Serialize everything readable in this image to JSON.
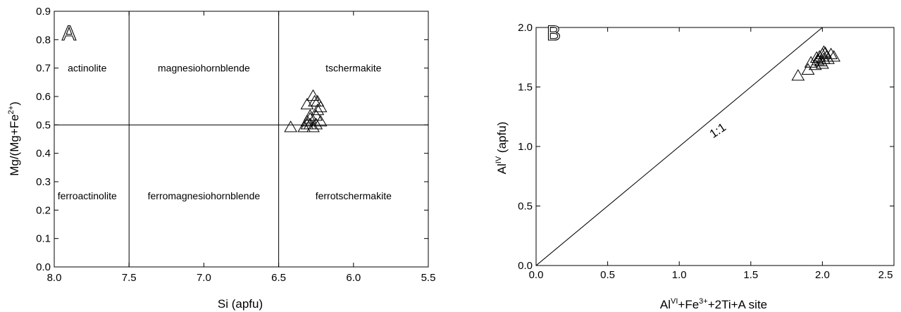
{
  "chart_data": [
    {
      "panel": "A",
      "type": "scatter",
      "xlabel": "Si (apfu)",
      "ylabel": "Mg/(Mg+Fe2+)",
      "xlim": [
        8.0,
        5.5
      ],
      "ylim": [
        0.0,
        0.9
      ],
      "x_reversed": true,
      "xticks": [
        "8.0",
        "7.5",
        "7.0",
        "6.5",
        "6.0",
        "5.5"
      ],
      "yticks": [
        "0.0",
        "0.1",
        "0.2",
        "0.3",
        "0.4",
        "0.5",
        "0.6",
        "0.7",
        "0.8",
        "0.9"
      ],
      "marker": "open-triangle",
      "divider_lines": {
        "vertical": [
          7.5,
          6.5
        ],
        "horizontal": [
          0.5
        ]
      },
      "regions": [
        {
          "label": "actinolite",
          "x": 7.78,
          "y": 0.7
        },
        {
          "label": "magnesiohornblende",
          "x": 7.0,
          "y": 0.7
        },
        {
          "label": "tschermakite",
          "x": 6.0,
          "y": 0.7
        },
        {
          "label": "ferroactinolite",
          "x": 7.78,
          "y": 0.25
        },
        {
          "label": "ferromagnesiohornblende",
          "x": 7.0,
          "y": 0.25
        },
        {
          "label": "ferrotschermakite",
          "x": 6.0,
          "y": 0.25
        }
      ],
      "points": [
        {
          "x": 6.42,
          "y": 0.49
        },
        {
          "x": 6.33,
          "y": 0.49
        },
        {
          "x": 6.31,
          "y": 0.5
        },
        {
          "x": 6.29,
          "y": 0.5
        },
        {
          "x": 6.27,
          "y": 0.49
        },
        {
          "x": 6.31,
          "y": 0.51
        },
        {
          "x": 6.29,
          "y": 0.52
        },
        {
          "x": 6.25,
          "y": 0.5
        },
        {
          "x": 6.22,
          "y": 0.51
        },
        {
          "x": 6.29,
          "y": 0.53
        },
        {
          "x": 6.24,
          "y": 0.55
        },
        {
          "x": 6.22,
          "y": 0.56
        },
        {
          "x": 6.31,
          "y": 0.57
        },
        {
          "x": 6.26,
          "y": 0.58
        },
        {
          "x": 6.24,
          "y": 0.58
        },
        {
          "x": 6.27,
          "y": 0.6
        },
        {
          "x": 6.25,
          "y": 0.53
        }
      ]
    },
    {
      "panel": "B",
      "type": "scatter",
      "xlabel": "AlVI+Fe3++2Ti+A site",
      "ylabel": "AlIV (apfu)",
      "xlim": [
        0.0,
        2.5
      ],
      "ylim": [
        0.0,
        2.0
      ],
      "xticks": [
        "0.0",
        "0.5",
        "1.0",
        "1.5",
        "2.0",
        "2.5"
      ],
      "yticks": [
        "0.0",
        "0.5",
        "1.0",
        "1.5",
        "2.0"
      ],
      "marker": "open-triangle",
      "reference_line": {
        "label": "1:1",
        "from": [
          0,
          0
        ],
        "to": [
          2.5,
          2.5
        ]
      },
      "points": [
        {
          "x": 1.83,
          "y": 1.59
        },
        {
          "x": 1.9,
          "y": 1.64
        },
        {
          "x": 1.92,
          "y": 1.7
        },
        {
          "x": 1.95,
          "y": 1.68
        },
        {
          "x": 1.97,
          "y": 1.72
        },
        {
          "x": 1.98,
          "y": 1.75
        },
        {
          "x": 1.99,
          "y": 1.71
        },
        {
          "x": 2.0,
          "y": 1.77
        },
        {
          "x": 2.01,
          "y": 1.73
        },
        {
          "x": 2.02,
          "y": 1.78
        },
        {
          "x": 2.03,
          "y": 1.75
        },
        {
          "x": 2.04,
          "y": 1.73
        },
        {
          "x": 2.06,
          "y": 1.77
        },
        {
          "x": 2.08,
          "y": 1.75
        },
        {
          "x": 2.0,
          "y": 1.69
        },
        {
          "x": 1.96,
          "y": 1.74
        },
        {
          "x": 2.01,
          "y": 1.79
        }
      ]
    }
  ]
}
